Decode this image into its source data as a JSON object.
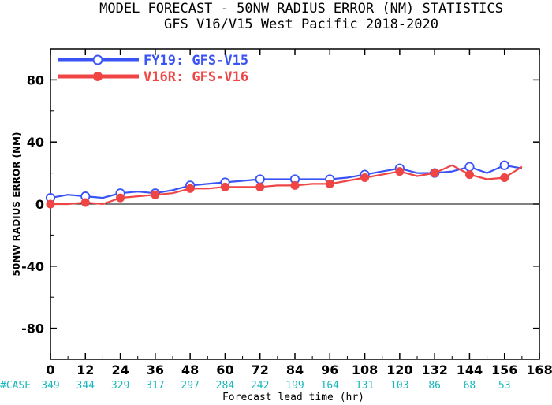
{
  "title": "MODEL FORECAST - 50NW RADIUS ERROR (NM) STATISTICS",
  "subtitle": "GFS V16/V15 West Pacific 2018-2020",
  "chart_data": {
    "type": "line",
    "xlabel": "Forecast lead time (hr)",
    "ylabel": "50NW RADIUS ERROR (NM)",
    "xlim": [
      0,
      168
    ],
    "ylim": [
      -100,
      100
    ],
    "x_ticks": [
      "0",
      "12",
      "24",
      "36",
      "48",
      "60",
      "72",
      "84",
      "96",
      "108",
      "120",
      "132",
      "144",
      "156",
      "168"
    ],
    "y_ticks": [
      "80",
      "40",
      "0",
      "-40",
      "-80"
    ],
    "case_label": "#CASE",
    "case_counts": [
      {
        "x": 0,
        "label": "349"
      },
      {
        "x": 12,
        "label": "344"
      },
      {
        "x": 24,
        "label": "329"
      },
      {
        "x": 36,
        "label": "317"
      },
      {
        "x": 48,
        "label": "297"
      },
      {
        "x": 60,
        "label": "284"
      },
      {
        "x": 72,
        "label": "242"
      },
      {
        "x": 84,
        "label": "199"
      },
      {
        "x": 96,
        "label": "164"
      },
      {
        "x": 108,
        "label": "131"
      },
      {
        "x": 120,
        "label": "103"
      },
      {
        "x": 132,
        "label": "86"
      },
      {
        "x": 144,
        "label": "68"
      },
      {
        "x": 156,
        "label": "53"
      }
    ],
    "series": [
      {
        "name": "FY19: GFS-V15",
        "color": "#3a53f5",
        "marker_style": "open-circle",
        "x": [
          0,
          6,
          12,
          18,
          24,
          30,
          36,
          42,
          48,
          54,
          60,
          66,
          72,
          78,
          84,
          90,
          96,
          102,
          108,
          114,
          120,
          126,
          132,
          138,
          144,
          150,
          156,
          162
        ],
        "y": [
          4,
          6,
          5,
          4,
          7,
          8,
          7,
          9,
          12,
          13,
          14,
          15,
          16,
          16,
          16,
          16,
          16,
          17,
          19,
          21,
          23,
          20,
          20,
          21,
          24,
          20,
          25,
          23
        ],
        "marker_x": [
          0,
          12,
          24,
          36,
          48,
          60,
          72,
          84,
          96,
          108,
          120,
          132,
          144,
          156
        ]
      },
      {
        "name": "V16R: GFS-V16",
        "color": "#f04545",
        "marker_style": "filled-circle",
        "x": [
          0,
          6,
          12,
          18,
          24,
          30,
          36,
          42,
          48,
          54,
          60,
          66,
          72,
          78,
          84,
          90,
          96,
          102,
          108,
          114,
          120,
          126,
          132,
          138,
          144,
          150,
          156,
          162
        ],
        "y": [
          0,
          0,
          1,
          0,
          4,
          5,
          6,
          7,
          10,
          10,
          11,
          11,
          11,
          12,
          12,
          13,
          13,
          15,
          17,
          19,
          21,
          18,
          20,
          25,
          19,
          16,
          17,
          24
        ],
        "marker_x": [
          0,
          12,
          24,
          36,
          48,
          60,
          72,
          84,
          96,
          108,
          120,
          132,
          144,
          156
        ]
      }
    ]
  }
}
